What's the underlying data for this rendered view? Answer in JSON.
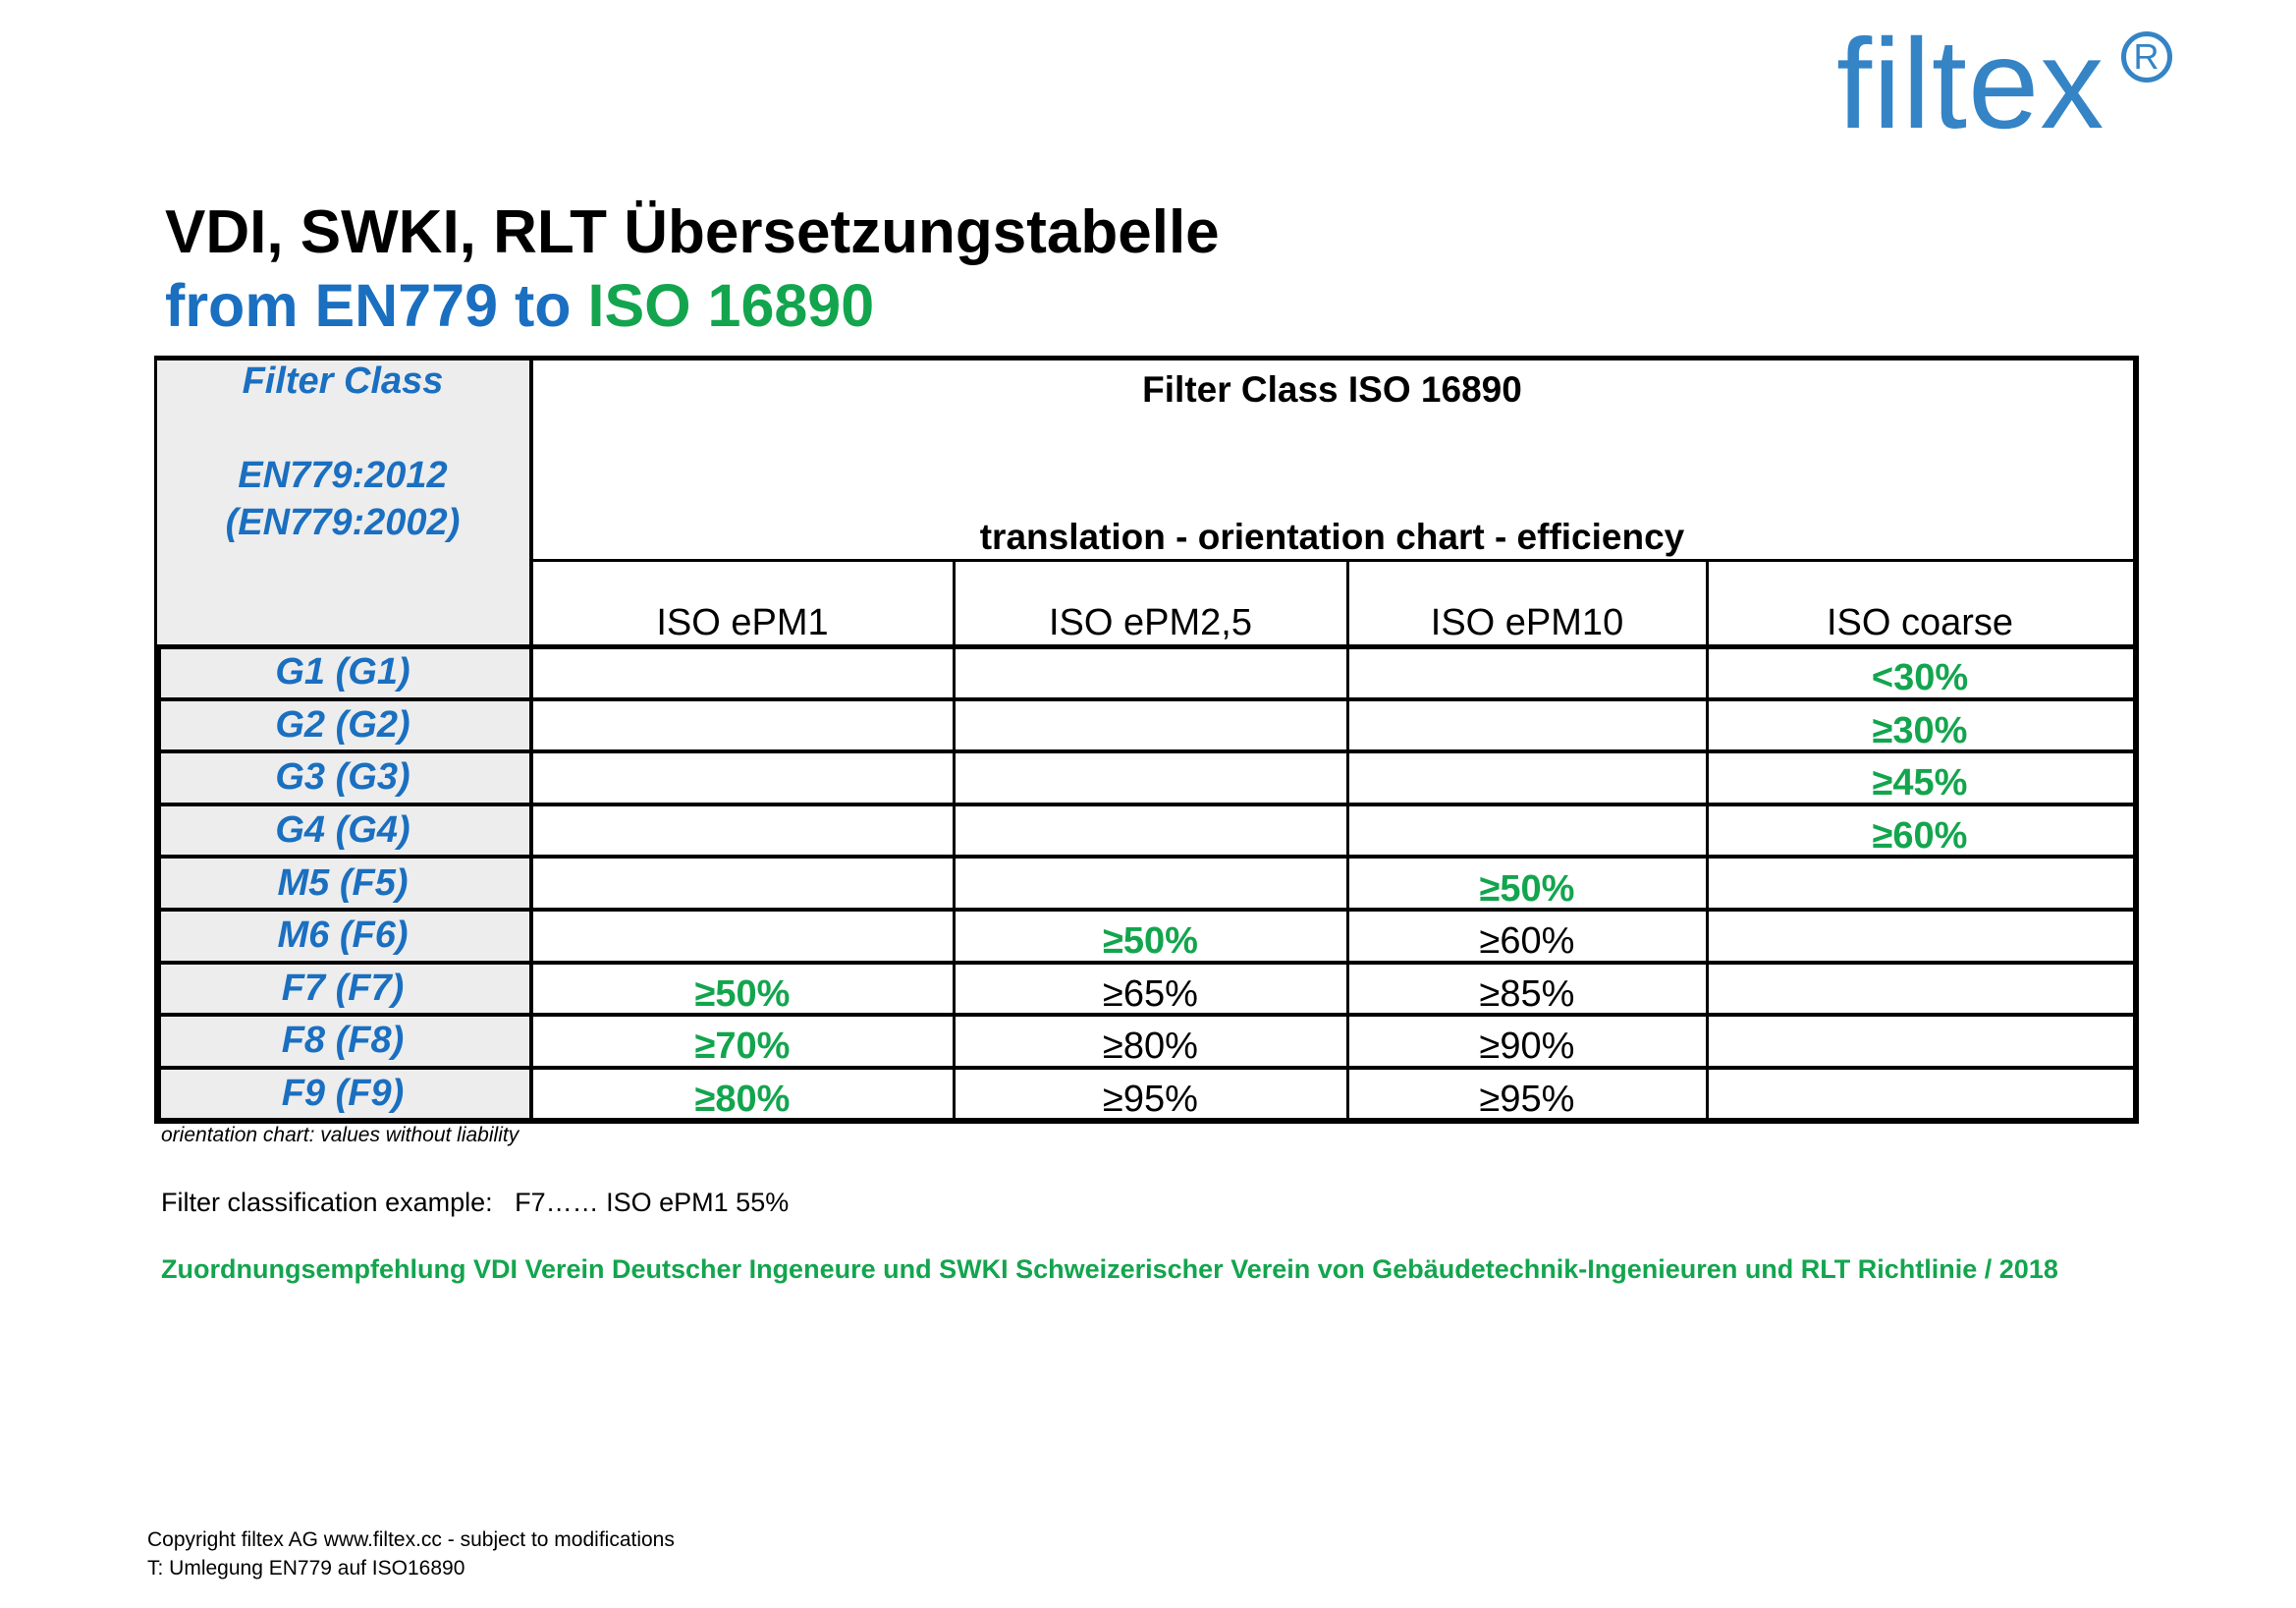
{
  "logo": {
    "text": "filtex",
    "registered_mark": "R",
    "color": "#3484c6"
  },
  "header": {
    "title": "VDI, SWKI, RLT Übersetzungstabelle",
    "subtitle_part1": "from EN779 to ",
    "subtitle_part2": "ISO 16890",
    "colors": {
      "title": "#000000",
      "subtitle_blue": "#1a6fc0",
      "subtitle_green": "#13a54e"
    }
  },
  "table": {
    "row_header_title": "Filter Class",
    "row_header_line1": "EN779:2012",
    "row_header_line2": "(EN779:2002)",
    "group_header": "Filter Class ISO 16890",
    "group_subheader": "translation - orientation chart - efficiency",
    "columns": [
      "ISO ePM1",
      "ISO ePM2,5",
      "ISO ePM10",
      "ISO coarse"
    ],
    "rows": [
      {
        "class": "G1 (G1)",
        "cells": [
          {
            "v": "",
            "c": ""
          },
          {
            "v": "",
            "c": ""
          },
          {
            "v": "",
            "c": ""
          },
          {
            "v": "<30%",
            "c": "green"
          }
        ]
      },
      {
        "class": "G2 (G2)",
        "cells": [
          {
            "v": "",
            "c": ""
          },
          {
            "v": "",
            "c": ""
          },
          {
            "v": "",
            "c": ""
          },
          {
            "v": "≥30%",
            "c": "green"
          }
        ]
      },
      {
        "class": "G3 (G3)",
        "cells": [
          {
            "v": "",
            "c": ""
          },
          {
            "v": "",
            "c": ""
          },
          {
            "v": "",
            "c": ""
          },
          {
            "v": "≥45%",
            "c": "green"
          }
        ]
      },
      {
        "class": "G4 (G4)",
        "cells": [
          {
            "v": "",
            "c": ""
          },
          {
            "v": "",
            "c": ""
          },
          {
            "v": "",
            "c": ""
          },
          {
            "v": "≥60%",
            "c": "green"
          }
        ]
      },
      {
        "class": "M5 (F5)",
        "cells": [
          {
            "v": "",
            "c": ""
          },
          {
            "v": "",
            "c": ""
          },
          {
            "v": "≥50%",
            "c": "green"
          },
          {
            "v": "",
            "c": ""
          }
        ]
      },
      {
        "class": "M6 (F6)",
        "cells": [
          {
            "v": "",
            "c": ""
          },
          {
            "v": "≥50%",
            "c": "green"
          },
          {
            "v": "≥60%",
            "c": "black"
          },
          {
            "v": "",
            "c": ""
          }
        ]
      },
      {
        "class": "F7 (F7)",
        "cells": [
          {
            "v": "≥50%",
            "c": "green"
          },
          {
            "v": "≥65%",
            "c": "black"
          },
          {
            "v": "≥85%",
            "c": "black"
          },
          {
            "v": "",
            "c": ""
          }
        ]
      },
      {
        "class": "F8 (F8)",
        "cells": [
          {
            "v": "≥70%",
            "c": "green"
          },
          {
            "v": "≥80%",
            "c": "black"
          },
          {
            "v": "≥90%",
            "c": "black"
          },
          {
            "v": "",
            "c": ""
          }
        ]
      },
      {
        "class": "F9 (F9)",
        "cells": [
          {
            "v": "≥80%",
            "c": "green"
          },
          {
            "v": "≥95%",
            "c": "black"
          },
          {
            "v": "≥95%",
            "c": "black"
          },
          {
            "v": "",
            "c": ""
          }
        ]
      }
    ],
    "colors": {
      "row_header_bg": "#ededed",
      "row_header_text": "#1a6fc0",
      "highlight_value": "#13a54e"
    }
  },
  "notes": {
    "disclaimer": "orientation chart: values without liability",
    "example": "Filter classification example:   F7…… ISO ePM1 55%",
    "recommendation": "Zuordnungsempfehlung VDI Verein Deutscher Ingeneure und SWKI Schweizerischer Verein von Gebäudetechnik-Ingenieuren und RLT Richtlinie / 2018"
  },
  "footer": {
    "copyright": "Copyright filtex AG www.filtex.cc - subject to modifications",
    "reference": "T: Umlegung EN779 auf ISO16890"
  }
}
